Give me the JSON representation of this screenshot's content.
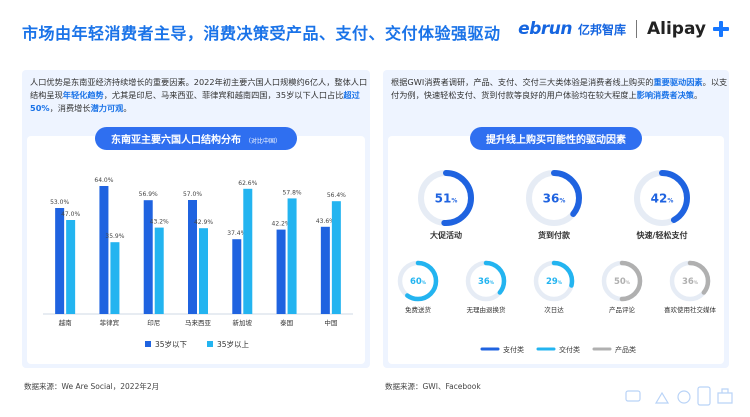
{
  "header": {
    "title": "市场由年轻消费者主导，消费决策受产品、支付、交付体验强驱动",
    "logo_ebrun": "ebrun",
    "logo_ebrun_cn": "亿邦智库",
    "logo_alipay": "Alipay"
  },
  "left": {
    "intro_segments": [
      {
        "t": "人口优势是东南亚经济持续增长的重要因素。2022年初主要六国人口规模约6亿人，整体人口结构呈现",
        "h": false
      },
      {
        "t": "年轻化趋势",
        "h": true
      },
      {
        "t": "，尤其是印尼、马来西亚、菲律宾和越南四国，35岁以下人口占比",
        "h": false
      },
      {
        "t": "超过50%",
        "h": true
      },
      {
        "t": "，消费增长",
        "h": false
      },
      {
        "t": "潜力可观",
        "h": true
      },
      {
        "t": "。",
        "h": false
      }
    ],
    "chart_title": "东南亚主要六国人口结构分布",
    "chart_subtitle": "（对比中国）",
    "source": "数据来源：We Are Social，2022年2月"
  },
  "right": {
    "intro_segments": [
      {
        "t": "根据GWI消费者调研，产品、支付、交付三大类体验是消费者线上购买的",
        "h": false
      },
      {
        "t": "重要驱动因素",
        "h": true
      },
      {
        "t": "。以支付为例，快速轻松支付、货到付款等良好的用户体验均在较大程度上",
        "h": false
      },
      {
        "t": "影响消费者决策",
        "h": true
      },
      {
        "t": "。",
        "h": false
      }
    ],
    "chart_title": "提升线上购买可能性的驱动因素",
    "source": "数据来源：GWI、Facebook"
  },
  "chart_data": [
    {
      "type": "bar",
      "title": "东南亚主要六国人口结构分布",
      "subtitle": "（对比中国）",
      "categories": [
        "越南",
        "菲律宾",
        "印尼",
        "马来西亚",
        "新加坡",
        "泰国",
        "中国"
      ],
      "series": [
        {
          "name": "35岁以下",
          "values": [
            53.0,
            64.0,
            56.9,
            57.0,
            37.4,
            42.2,
            43.6
          ],
          "labels": [
            "53.0%",
            "64.0%",
            "56.9%",
            "57.0%",
            "37.4%",
            "42.2%",
            "43.6%"
          ],
          "color": "#1f63e0"
        },
        {
          "name": "35岁以上",
          "values": [
            47.0,
            35.9,
            43.2,
            42.9,
            62.6,
            57.8,
            56.4
          ],
          "labels": [
            "47.0%",
            "35.9%",
            "43.2%",
            "42.9%",
            "62.6%",
            "57.8%",
            "56.4%"
          ],
          "color": "#23b4f0"
        }
      ],
      "ylim": [
        0,
        70
      ],
      "legend": "bottom"
    },
    {
      "type": "gauge",
      "title": "提升线上购买可能性的驱动因素",
      "items": [
        {
          "label": "大促活动",
          "value": 51,
          "category": "支付类",
          "big": true
        },
        {
          "label": "货到付款",
          "value": 36,
          "category": "支付类",
          "big": true
        },
        {
          "label": "快速/轻松支付",
          "value": 42,
          "category": "支付类",
          "big": true
        },
        {
          "label": "免费送货",
          "value": 60,
          "category": "交付类",
          "big": false
        },
        {
          "label": "无理由退换货",
          "value": 36,
          "category": "交付类",
          "big": false
        },
        {
          "label": "次日达",
          "value": 29,
          "category": "交付类",
          "big": false
        },
        {
          "label": "产品评论",
          "value": 50,
          "category": "产品类",
          "big": false
        },
        {
          "label": "喜欢使用社交媒体",
          "value": 36,
          "category": "产品类",
          "big": false
        }
      ],
      "legend": [
        {
          "name": "支付类",
          "color": "#1f63e0"
        },
        {
          "name": "交付类",
          "color": "#23b4f0"
        },
        {
          "name": "产品类",
          "color": "#b0b0b0"
        }
      ]
    }
  ]
}
